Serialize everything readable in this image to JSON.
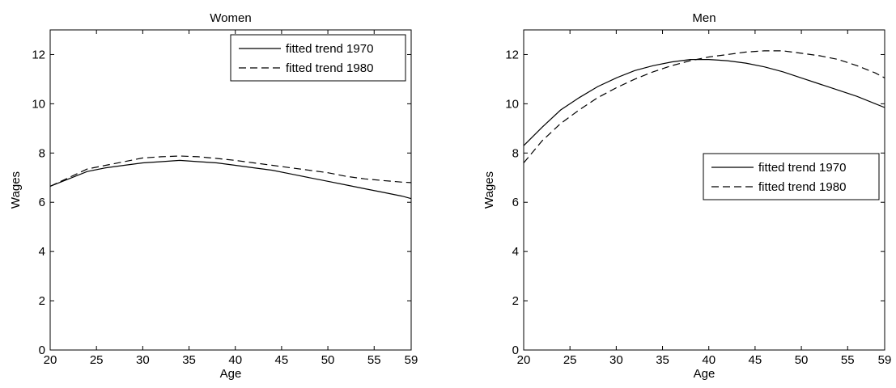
{
  "chart_data": [
    {
      "type": "line",
      "title": "Women",
      "xlabel": "Age",
      "ylabel": "Wages",
      "xlim": [
        20,
        59
      ],
      "ylim": [
        0,
        13
      ],
      "x_ticks": [
        20,
        25,
        30,
        35,
        40,
        45,
        50,
        55,
        59
      ],
      "y_ticks": [
        0,
        2,
        4,
        6,
        8,
        10,
        12
      ],
      "legend_position": "top-right",
      "x": [
        20,
        22,
        24,
        26,
        28,
        30,
        32,
        34,
        36,
        38,
        40,
        42,
        44,
        46,
        48,
        50,
        52,
        54,
        56,
        58,
        59
      ],
      "series": [
        {
          "name": "fitted trend 1970",
          "style": "solid",
          "values": [
            6.65,
            6.95,
            7.25,
            7.4,
            7.5,
            7.6,
            7.65,
            7.7,
            7.65,
            7.6,
            7.5,
            7.4,
            7.3,
            7.15,
            7.0,
            6.85,
            6.7,
            6.55,
            6.4,
            6.25,
            6.15
          ]
        },
        {
          "name": "fitted trend 1980",
          "style": "dashed",
          "values": [
            6.65,
            7.0,
            7.35,
            7.5,
            7.65,
            7.8,
            7.85,
            7.88,
            7.85,
            7.78,
            7.7,
            7.6,
            7.5,
            7.4,
            7.3,
            7.2,
            7.05,
            6.95,
            6.88,
            6.82,
            6.8
          ]
        }
      ]
    },
    {
      "type": "line",
      "title": "Men",
      "xlabel": "Age",
      "ylabel": "Wages",
      "xlim": [
        20,
        59
      ],
      "ylim": [
        0,
        13
      ],
      "x_ticks": [
        20,
        25,
        30,
        35,
        40,
        45,
        50,
        55,
        59
      ],
      "y_ticks": [
        0,
        2,
        4,
        6,
        8,
        10,
        12
      ],
      "legend_position": "right",
      "x": [
        20,
        22,
        24,
        26,
        28,
        30,
        32,
        34,
        36,
        38,
        40,
        42,
        44,
        46,
        48,
        50,
        52,
        54,
        56,
        58,
        59
      ],
      "series": [
        {
          "name": "fitted trend 1970",
          "style": "solid",
          "values": [
            8.3,
            9.05,
            9.75,
            10.25,
            10.7,
            11.05,
            11.35,
            11.55,
            11.7,
            11.8,
            11.8,
            11.75,
            11.65,
            11.5,
            11.3,
            11.05,
            10.8,
            10.55,
            10.3,
            10.0,
            9.85
          ]
        },
        {
          "name": "fitted trend 1980",
          "style": "dashed",
          "values": [
            7.6,
            8.5,
            9.2,
            9.75,
            10.25,
            10.65,
            11.0,
            11.3,
            11.55,
            11.75,
            11.9,
            12.0,
            12.1,
            12.15,
            12.15,
            12.05,
            11.95,
            11.8,
            11.55,
            11.25,
            11.05
          ]
        }
      ]
    }
  ]
}
